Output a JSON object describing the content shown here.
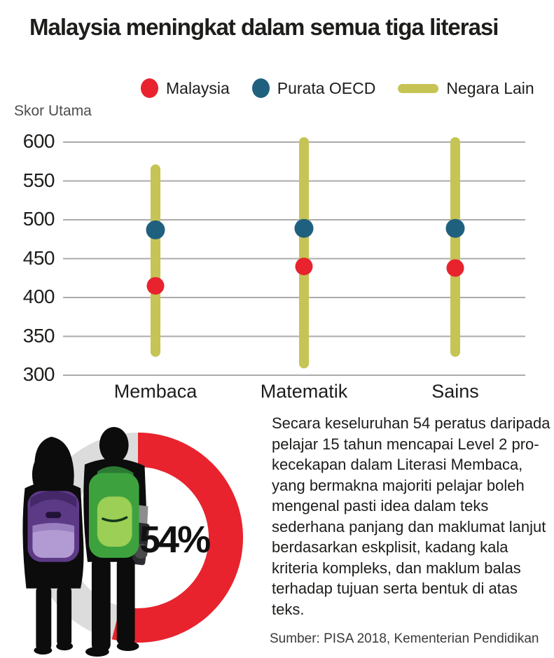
{
  "title": "Malaysia meningkat dalam semua tiga literasi",
  "legend": [
    {
      "label": "Malaysia",
      "color": "#e8232e",
      "marker": "dot"
    },
    {
      "label": "Purata OECD",
      "color": "#20607f",
      "marker": "dot"
    },
    {
      "label": "Negara Lain",
      "color": "#c6c454",
      "marker": "bar"
    }
  ],
  "chart_data": {
    "type": "scatter",
    "subtype": "dot-and-range",
    "title": "Malaysia meningkat dalam semua tiga literasi",
    "y_axis_title": "Skor Utama",
    "categories": [
      "Membaca",
      "Matematik",
      "Sains"
    ],
    "yticks": [
      600,
      550,
      500,
      450,
      400,
      350,
      300
    ],
    "ylim": [
      300,
      600
    ],
    "grid": true,
    "legend_position": "top",
    "series": [
      {
        "name": "Malaysia",
        "type": "dot",
        "color": "#e8232e",
        "values": [
          415,
          440,
          438
        ]
      },
      {
        "name": "Purata OECD",
        "type": "dot",
        "color": "#20607f",
        "values": [
          487,
          489,
          489
        ]
      },
      {
        "name": "Negara Lain",
        "type": "range",
        "color": "#c6c454",
        "ranges": [
          [
            330,
            565
          ],
          [
            315,
            600
          ],
          [
            330,
            600
          ]
        ]
      }
    ]
  },
  "donut": {
    "percent": 54,
    "label": "54%",
    "color": "#e8232e",
    "track_color": "#dcdcdc"
  },
  "bottom": {
    "paragraph": "Secara keseluruhan 54 peratus daripada pelajar 15 tahun mencapai Level 2 pro-kecekapan dalam Literasi Membaca, yang bermakna majoriti pelajar boleh mengenal pasti idea dalam teks sederhana panjang dan maklumat lanjut berdasarkan eskplisit, kadang kala kriteria kompleks, dan maklum balas terhadap tujuan serta bentuk di atas teks.",
    "source": "Sumber: PISA 2018, Kementerian Pendidikan"
  }
}
